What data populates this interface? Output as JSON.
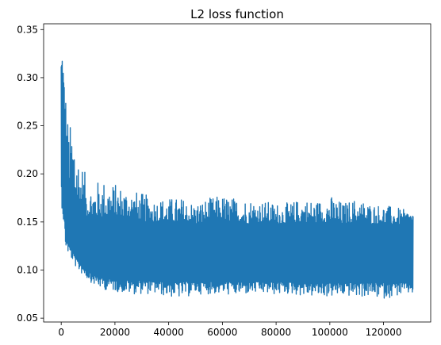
{
  "chart_data": {
    "type": "line",
    "title": "L2 loss function",
    "xlabel": "",
    "ylabel": "",
    "xlim": [
      -6550,
      137550
    ],
    "ylim": [
      0.046,
      0.356
    ],
    "xticks": [
      0,
      20000,
      40000,
      60000,
      80000,
      100000,
      120000
    ],
    "xtick_labels": [
      "0",
      "20000",
      "40000",
      "60000",
      "80000",
      "100000",
      "120000"
    ],
    "yticks": [
      0.05,
      0.1,
      0.15,
      0.2,
      0.25,
      0.3,
      0.35
    ],
    "ytick_labels": [
      "0.05",
      "0.10",
      "0.15",
      "0.20",
      "0.25",
      "0.30",
      "0.35"
    ],
    "grid": false,
    "legend": "none",
    "series": [
      {
        "color": "#1f77b4",
        "x": [
          0,
          500,
          1000,
          1500,
          2000,
          3000,
          4000,
          5000,
          6000,
          8000,
          10000,
          12000,
          15000,
          20000,
          25000,
          30000,
          35000,
          40000,
          45000,
          50000,
          55000,
          60000,
          65000,
          70000,
          75000,
          80000,
          85000,
          90000,
          95000,
          100000,
          105000,
          110000,
          115000,
          120000,
          125000,
          131000
        ],
        "upper": [
          0.33,
          0.343,
          0.31,
          0.3,
          0.27,
          0.25,
          0.255,
          0.262,
          0.23,
          0.21,
          0.19,
          0.19,
          0.195,
          0.19,
          0.185,
          0.18,
          0.175,
          0.175,
          0.175,
          0.17,
          0.175,
          0.178,
          0.175,
          0.175,
          0.172,
          0.17,
          0.17,
          0.175,
          0.172,
          0.178,
          0.17,
          0.175,
          0.17,
          0.168,
          0.165,
          0.16
        ],
        "lower": [
          0.17,
          0.16,
          0.14,
          0.125,
          0.12,
          0.115,
          0.11,
          0.105,
          0.1,
          0.095,
          0.09,
          0.085,
          0.08,
          0.078,
          0.075,
          0.075,
          0.075,
          0.072,
          0.07,
          0.075,
          0.075,
          0.075,
          0.073,
          0.075,
          0.075,
          0.074,
          0.075,
          0.073,
          0.072,
          0.072,
          0.073,
          0.072,
          0.072,
          0.07,
          0.073,
          0.075
        ],
        "band_top": [
          0.3,
          0.3,
          0.27,
          0.24,
          0.21,
          0.19,
          0.18,
          0.175,
          0.17,
          0.16,
          0.155,
          0.155,
          0.155,
          0.155,
          0.155,
          0.15,
          0.15,
          0.15,
          0.15,
          0.148,
          0.15,
          0.15,
          0.15,
          0.148,
          0.15,
          0.148,
          0.148,
          0.15,
          0.148,
          0.15,
          0.148,
          0.15,
          0.148,
          0.148,
          0.147,
          0.15
        ],
        "band_bottom": [
          0.19,
          0.18,
          0.16,
          0.14,
          0.13,
          0.125,
          0.12,
          0.115,
          0.11,
          0.105,
          0.1,
          0.095,
          0.092,
          0.09,
          0.09,
          0.09,
          0.088,
          0.088,
          0.088,
          0.088,
          0.088,
          0.088,
          0.088,
          0.088,
          0.088,
          0.088,
          0.088,
          0.088,
          0.087,
          0.087,
          0.087,
          0.087,
          0.087,
          0.087,
          0.087,
          0.087
        ]
      }
    ]
  }
}
